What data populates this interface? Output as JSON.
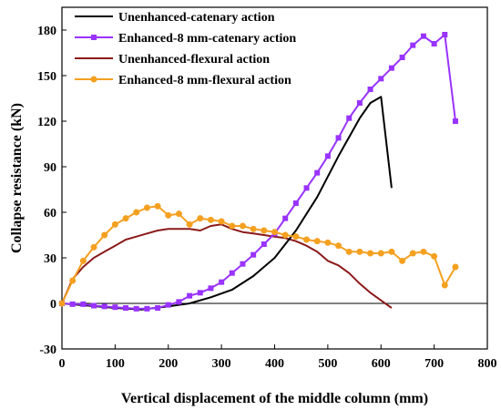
{
  "chart_data": {
    "type": "line",
    "xlabel": "Vertical displacement of the middle column (mm)",
    "ylabel": "Collapse resistance (kN)",
    "xlim": [
      0,
      800
    ],
    "ylim": [
      -30,
      195
    ],
    "x_ticks": [
      0,
      100,
      200,
      300,
      400,
      500,
      600,
      700,
      800
    ],
    "y_ticks": [
      -30,
      0,
      30,
      60,
      90,
      120,
      150,
      180
    ],
    "grid": false,
    "legend_position": "top-left",
    "series": [
      {
        "name": "Unenhanced-catenary action",
        "color": "#000000",
        "marker": "none",
        "points": [
          [
            0,
            0
          ],
          [
            100,
            -3
          ],
          [
            150,
            -4
          ],
          [
            200,
            -2
          ],
          [
            240,
            0
          ],
          [
            280,
            4
          ],
          [
            320,
            9
          ],
          [
            360,
            18
          ],
          [
            400,
            30
          ],
          [
            440,
            48
          ],
          [
            480,
            70
          ],
          [
            520,
            97
          ],
          [
            560,
            122
          ],
          [
            580,
            132
          ],
          [
            600,
            136
          ],
          [
            620,
            76
          ]
        ]
      },
      {
        "name": "Enhanced-8 mm-catenary action",
        "color": "#9933ff",
        "marker": "square",
        "points": [
          [
            0,
            0
          ],
          [
            20,
            -0.5
          ],
          [
            40,
            -0.5
          ],
          [
            60,
            -1.5
          ],
          [
            80,
            -2
          ],
          [
            100,
            -2.5
          ],
          [
            120,
            -3
          ],
          [
            140,
            -3.5
          ],
          [
            160,
            -3.5
          ],
          [
            180,
            -3
          ],
          [
            200,
            -1
          ],
          [
            220,
            1
          ],
          [
            240,
            5
          ],
          [
            260,
            7
          ],
          [
            280,
            10
          ],
          [
            300,
            14
          ],
          [
            320,
            20
          ],
          [
            340,
            26
          ],
          [
            360,
            32
          ],
          [
            380,
            39
          ],
          [
            400,
            46
          ],
          [
            420,
            56
          ],
          [
            440,
            66
          ],
          [
            460,
            76
          ],
          [
            480,
            86
          ],
          [
            500,
            97
          ],
          [
            520,
            109
          ],
          [
            540,
            122
          ],
          [
            560,
            132
          ],
          [
            580,
            141
          ],
          [
            600,
            148
          ],
          [
            620,
            155
          ],
          [
            640,
            162
          ],
          [
            660,
            170
          ],
          [
            680,
            176
          ],
          [
            700,
            171
          ],
          [
            720,
            177
          ],
          [
            740,
            120
          ]
        ]
      },
      {
        "name": "Unenhanced-flexural action",
        "color": "#8b1a1a",
        "marker": "none",
        "points": [
          [
            0,
            0
          ],
          [
            20,
            16
          ],
          [
            40,
            24
          ],
          [
            60,
            30
          ],
          [
            80,
            34
          ],
          [
            100,
            38
          ],
          [
            120,
            42
          ],
          [
            140,
            44
          ],
          [
            160,
            46
          ],
          [
            180,
            48
          ],
          [
            200,
            49
          ],
          [
            240,
            49
          ],
          [
            260,
            48
          ],
          [
            280,
            51
          ],
          [
            300,
            52
          ],
          [
            320,
            49
          ],
          [
            340,
            47
          ],
          [
            360,
            46
          ],
          [
            380,
            45
          ],
          [
            400,
            44
          ],
          [
            420,
            43
          ],
          [
            440,
            41
          ],
          [
            460,
            38
          ],
          [
            480,
            34
          ],
          [
            500,
            28
          ],
          [
            520,
            25
          ],
          [
            540,
            20
          ],
          [
            560,
            13
          ],
          [
            580,
            7
          ],
          [
            600,
            2
          ],
          [
            620,
            -3
          ]
        ]
      },
      {
        "name": "Enhanced-8 mm-flexural action",
        "color": "#f4a020",
        "marker": "circle",
        "points": [
          [
            0,
            0
          ],
          [
            20,
            15
          ],
          [
            40,
            28
          ],
          [
            60,
            37
          ],
          [
            80,
            45
          ],
          [
            100,
            52
          ],
          [
            120,
            56
          ],
          [
            140,
            60
          ],
          [
            160,
            63
          ],
          [
            180,
            64
          ],
          [
            200,
            58
          ],
          [
            220,
            59
          ],
          [
            240,
            52
          ],
          [
            260,
            56
          ],
          [
            280,
            55
          ],
          [
            300,
            54
          ],
          [
            320,
            51
          ],
          [
            340,
            51
          ],
          [
            360,
            49
          ],
          [
            380,
            48
          ],
          [
            400,
            47
          ],
          [
            420,
            45
          ],
          [
            440,
            44
          ],
          [
            460,
            42
          ],
          [
            480,
            41
          ],
          [
            500,
            40
          ],
          [
            520,
            38
          ],
          [
            540,
            34
          ],
          [
            560,
            34
          ],
          [
            580,
            33
          ],
          [
            600,
            33
          ],
          [
            620,
            34
          ],
          [
            640,
            28
          ],
          [
            660,
            33
          ],
          [
            680,
            34
          ],
          [
            700,
            31
          ],
          [
            720,
            12
          ],
          [
            740,
            24
          ]
        ]
      }
    ]
  }
}
